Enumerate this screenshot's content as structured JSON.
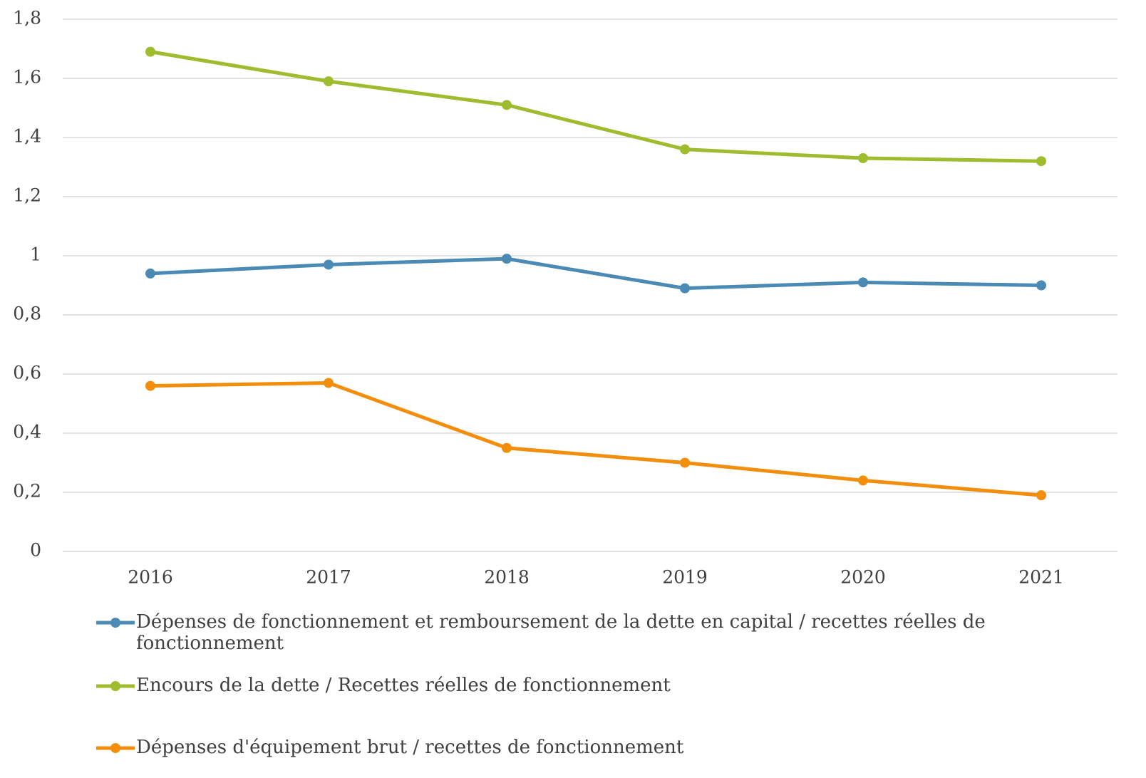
{
  "chart_data": {
    "type": "line",
    "categories": [
      "2016",
      "2017",
      "2018",
      "2019",
      "2020",
      "2021"
    ],
    "series": [
      {
        "name": "Dépenses de fonctionnement et remboursement de la dette en capital / recettes réelles de fonctionnement",
        "color": "#4a8ab5",
        "values": [
          0.94,
          0.97,
          0.99,
          0.89,
          0.91,
          0.9
        ]
      },
      {
        "name": "Encours de la dette / Recettes réelles de fonctionnement",
        "color": "#9fbb2e",
        "values": [
          1.69,
          1.59,
          1.51,
          1.36,
          1.33,
          1.32
        ]
      },
      {
        "name": "Dépenses d'équipement brut / recettes de fonctionnement",
        "color": "#f28e0c",
        "values": [
          0.56,
          0.57,
          0.35,
          0.3,
          0.24,
          0.19
        ]
      }
    ],
    "ylim": [
      0,
      1.8
    ],
    "yticks": [
      0,
      {
        "value": 0.2,
        "label": "0,2"
      },
      {
        "value": 0.4,
        "label": "0,4"
      },
      {
        "value": 0.6,
        "label": "0,6"
      },
      {
        "value": 0.8,
        "label": "0,8"
      },
      1,
      {
        "value": 1.2,
        "label": "1,2"
      },
      {
        "value": 1.4,
        "label": "1,4"
      },
      {
        "value": 1.6,
        "label": "1,6"
      },
      {
        "value": 1.8,
        "label": "1,8"
      }
    ],
    "grid": true,
    "legend": "bottom"
  }
}
